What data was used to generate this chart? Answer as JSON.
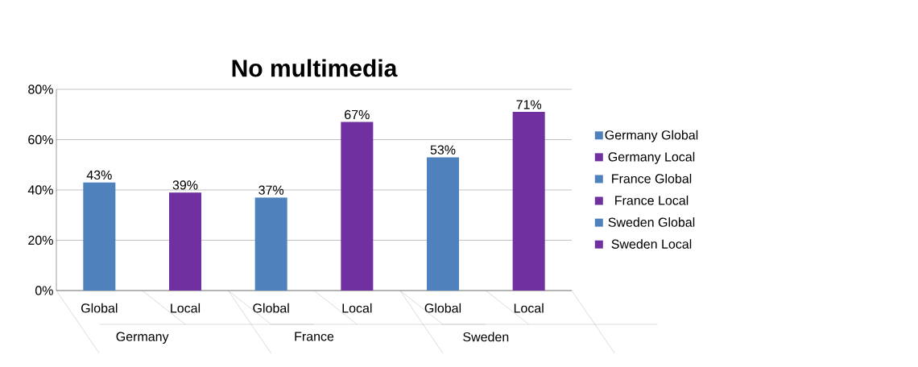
{
  "chart_data": {
    "type": "bar",
    "title": "No multimedia",
    "categories": [
      "Global",
      "Local",
      "Global",
      "Local",
      "Global",
      "Local"
    ],
    "series": [
      {
        "name": "Germany Global",
        "color": "#4f81bd",
        "values": [
          43,
          null,
          null,
          null,
          null,
          null
        ],
        "value_labels": [
          "43%",
          null,
          null,
          null,
          null,
          null
        ]
      },
      {
        "name": "Germany Local",
        "color": "#7030a0",
        "values": [
          null,
          39,
          null,
          null,
          null,
          null
        ],
        "value_labels": [
          null,
          "39%",
          null,
          null,
          null,
          null
        ]
      },
      {
        "name": "France Global",
        "color": "#4f81bd",
        "values": [
          null,
          null,
          37,
          null,
          null,
          null
        ],
        "value_labels": [
          null,
          null,
          "37%",
          null,
          null,
          null
        ]
      },
      {
        "name": "France Local",
        "color": "#7030a0",
        "values": [
          null,
          null,
          null,
          67,
          null,
          null
        ],
        "value_labels": [
          null,
          null,
          null,
          "67%",
          null,
          null
        ]
      },
      {
        "name": "Sweden Global",
        "color": "#4f81bd",
        "values": [
          null,
          null,
          null,
          null,
          53,
          null
        ],
        "value_labels": [
          null,
          null,
          null,
          null,
          "53%",
          null
        ]
      },
      {
        "name": "Sweden Local",
        "color": "#7030a0",
        "values": [
          null,
          null,
          null,
          null,
          null,
          71
        ],
        "value_labels": [
          null,
          null,
          null,
          null,
          null,
          "71%"
        ]
      }
    ],
    "annotations": [
      "Germany",
      "France",
      "Sweden"
    ],
    "ylim": [
      0,
      80
    ],
    "yticks": [
      {
        "value": 0,
        "label": "0%"
      },
      {
        "value": 20,
        "label": "20%"
      },
      {
        "value": 40,
        "label": "40%"
      },
      {
        "value": 60,
        "label": "60%"
      },
      {
        "value": 80,
        "label": "80%"
      }
    ],
    "grid": "y",
    "legend": "right"
  }
}
